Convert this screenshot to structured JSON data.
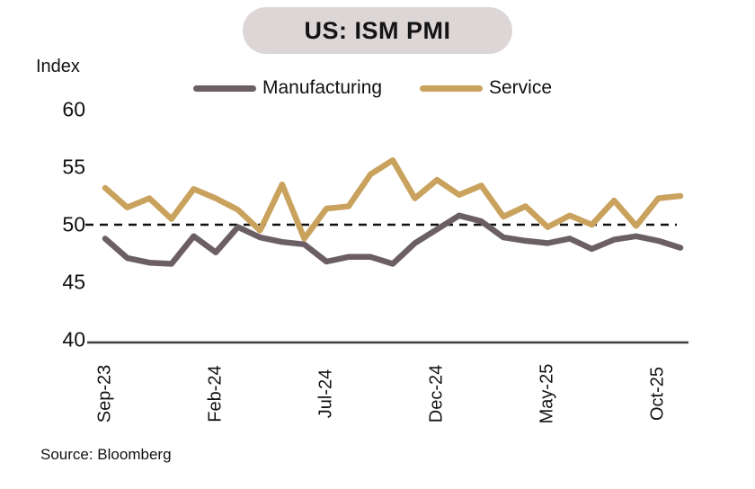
{
  "header": {
    "title": "US: ISM PMI"
  },
  "footer": {
    "source": "Source: Bloomberg"
  },
  "colors": {
    "title_pill_bg": "#ddd6d6",
    "manufacturing_line": "#6b5f65",
    "service_line": "#c9a25d",
    "axis": "#3f3f3f",
    "reference_line": "#111111"
  },
  "chart_data": {
    "type": "line",
    "title": "US: ISM PMI",
    "ylabel": "Index",
    "x": [
      "Sep-23",
      "Oct-23",
      "Nov-23",
      "Dec-23",
      "Jan-24",
      "Feb-24",
      "Mar-24",
      "Apr-24",
      "May-24",
      "Jun-24",
      "Jul-24",
      "Aug-24",
      "Sep-24",
      "Oct-24",
      "Nov-24",
      "Dec-24",
      "Jan-25",
      "Feb-25",
      "Mar-25",
      "Apr-25",
      "May-25",
      "Jun-25",
      "Jul-25",
      "Aug-25",
      "Sep-25",
      "Oct-25",
      "Nov-25"
    ],
    "series": [
      {
        "name": "Manufacturing",
        "color": "#6b5f65",
        "values": [
          48.8,
          47.1,
          46.7,
          46.6,
          49.0,
          47.6,
          49.8,
          48.9,
          48.5,
          48.3,
          46.8,
          47.2,
          47.2,
          46.6,
          48.4,
          49.6,
          50.8,
          50.3,
          48.9,
          48.6,
          48.4,
          48.8,
          47.9,
          48.7,
          49.0,
          48.6,
          48.0
        ]
      },
      {
        "name": "Service",
        "color": "#c9a25d",
        "values": [
          53.2,
          51.5,
          52.3,
          50.5,
          53.1,
          52.3,
          51.3,
          49.5,
          53.5,
          48.8,
          51.4,
          51.6,
          54.4,
          55.6,
          52.3,
          53.9,
          52.6,
          53.4,
          50.7,
          51.6,
          49.8,
          50.8,
          50.0,
          52.1,
          49.9,
          52.3,
          52.5
        ]
      }
    ],
    "ylim": [
      40,
      60
    ],
    "yticks": [
      "60",
      "55",
      "50",
      "45",
      "40"
    ],
    "xticks": [
      "Sep-23",
      "Feb-24",
      "Jul-24",
      "Dec-24",
      "May-25",
      "Oct-25"
    ],
    "reference_line": 50,
    "grid": false,
    "legend_position": "top-center"
  }
}
